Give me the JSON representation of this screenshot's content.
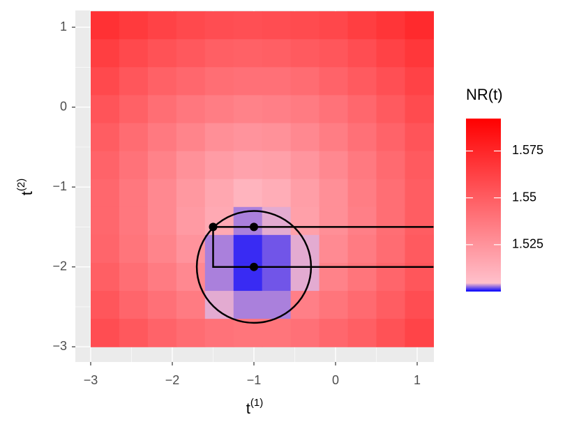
{
  "chart_data": {
    "type": "heatmap",
    "xlabel": "t",
    "xlabel_sup": "(1)",
    "ylabel": "t",
    "ylabel_sup": "(2)",
    "legend_title": "NR(t)",
    "xlim": [
      -3.188,
      1.205
    ],
    "ylim": [
      -3.19,
      1.21
    ],
    "xticks": [
      {
        "value": -3,
        "label": "−3"
      },
      {
        "value": -2,
        "label": "−2"
      },
      {
        "value": -1,
        "label": "−1"
      },
      0,
      1
    ],
    "yticks": [
      {
        "value": -3,
        "label": "−3"
      },
      {
        "value": -2,
        "label": "−2"
      },
      {
        "value": -1,
        "label": "−1"
      },
      0,
      1
    ],
    "grid": true,
    "x": [
      -2.825,
      -2.475,
      -2.125,
      -1.775,
      -1.425,
      -1.075,
      -0.725,
      -0.375,
      -0.025,
      0.325,
      0.675,
      1.025
    ],
    "y": [
      1.025,
      0.675,
      0.325,
      -0.025,
      -0.375,
      -0.725,
      -1.075,
      -1.425,
      -1.775,
      -2.125,
      -2.475,
      -2.825
    ],
    "z": [
      [
        1.57,
        1.566,
        1.562,
        1.559,
        1.557,
        1.556,
        1.557,
        1.558,
        1.56,
        1.564,
        1.568,
        1.573
      ],
      [
        1.564,
        1.559,
        1.555,
        1.552,
        1.549,
        1.548,
        1.549,
        1.551,
        1.553,
        1.557,
        1.562,
        1.567
      ],
      [
        1.559,
        1.553,
        1.548,
        1.545,
        1.542,
        1.541,
        1.541,
        1.543,
        1.547,
        1.551,
        1.556,
        1.562
      ],
      [
        1.554,
        1.548,
        1.542,
        1.538,
        1.535,
        1.533,
        1.534,
        1.536,
        1.54,
        1.545,
        1.551,
        1.558
      ],
      [
        1.55,
        1.543,
        1.537,
        1.532,
        1.527,
        1.525,
        1.526,
        1.53,
        1.535,
        1.541,
        1.547,
        1.554
      ],
      [
        1.547,
        1.54,
        1.533,
        1.526,
        1.521,
        1.518,
        1.519,
        1.524,
        1.53,
        1.537,
        1.544,
        1.551
      ],
      [
        1.545,
        1.538,
        1.53,
        1.523,
        1.516,
        1.51,
        1.513,
        1.52,
        1.527,
        1.535,
        1.542,
        1.55
      ],
      [
        1.545,
        1.538,
        1.53,
        1.522,
        1.515,
        1.503,
        1.504,
        1.519,
        1.527,
        1.534,
        1.542,
        1.55
      ],
      [
        1.546,
        1.539,
        1.532,
        1.525,
        1.503,
        1.501,
        1.502,
        1.504,
        1.529,
        1.536,
        1.543,
        1.551
      ],
      [
        1.549,
        1.542,
        1.536,
        1.53,
        1.503,
        1.501,
        1.502,
        1.504,
        1.533,
        1.539,
        1.546,
        1.553
      ],
      [
        1.553,
        1.546,
        1.541,
        1.536,
        1.504,
        1.503,
        1.503,
        1.534,
        1.539,
        1.544,
        1.55,
        1.557
      ],
      [
        1.557,
        1.552,
        1.547,
        1.543,
        1.54,
        1.539,
        1.539,
        1.541,
        1.545,
        1.549,
        1.555,
        1.561
      ]
    ],
    "colorscale": [
      {
        "value": 1.5,
        "color": "#0000ff"
      },
      {
        "value": 1.5045,
        "color": "#ffc0cb"
      },
      {
        "value": 1.5923,
        "color": "#ff0000"
      }
    ],
    "colorbar_lim": [
      1.5,
      1.5923
    ],
    "colorbar_ticks": [
      1.525,
      1.55,
      1.575
    ],
    "circle": {
      "center": [
        -1,
        -2
      ],
      "radius": 0.7
    },
    "points": {
      "x": [
        -1.5,
        -1,
        -1
      ],
      "y": [
        -1.5,
        -1.5,
        -2
      ]
    },
    "lines": [
      {
        "x": [
          -1.5,
          1.2
        ],
        "y": [
          -1.5,
          -1.5
        ]
      },
      {
        "x": [
          -1.5,
          -1.5,
          1.2
        ],
        "y": [
          -1.5,
          -2,
          -2
        ]
      }
    ]
  }
}
